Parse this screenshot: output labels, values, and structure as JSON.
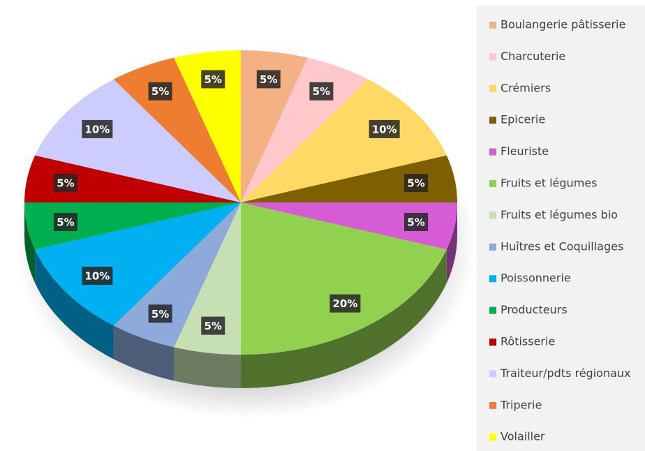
{
  "chart_data": {
    "type": "pie",
    "categories": [
      "Boulangerie pâtisserie",
      "Charcuterie",
      "Crémiers",
      "Epicerie",
      "Fleuriste",
      "Fruits et légumes",
      "Fruits et légumes bio",
      "Huîtres et Coquillages",
      "Poissonnerie",
      "Producteurs",
      "Rôtisserie",
      "Traiteur/pdts régionaux",
      "Triperie",
      "Volailler"
    ],
    "values": [
      5,
      5,
      10,
      5,
      5,
      20,
      5,
      5,
      10,
      5,
      5,
      10,
      5,
      5
    ],
    "value_labels": [
      "5%",
      "5%",
      "10%",
      "5%",
      "5%",
      "20%",
      "5%",
      "5%",
      "10%",
      "5%",
      "5%",
      "10%",
      "5%",
      "5%"
    ],
    "colors": [
      "#f4b183",
      "#ffc9cc",
      "#ffd966",
      "#7f6000",
      "#d65cd6",
      "#92d050",
      "#c6e0b4",
      "#8eaadb",
      "#00b0f0",
      "#00b050",
      "#c00000",
      "#ccccff",
      "#ed7d31",
      "#ffff00"
    ],
    "legend": "right"
  }
}
